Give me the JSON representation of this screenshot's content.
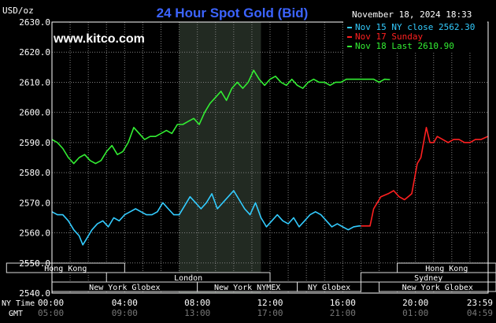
{
  "header": {
    "unit_label": "USD/oz",
    "title": "24 Hour Spot Gold (Bid)",
    "timestamp": "November 18, 2024 18:33",
    "site": "www.kitco.com"
  },
  "colors": {
    "background": "#000000",
    "grid": "#808080",
    "frame": "#ffffff",
    "title": "#3c64ff",
    "site": "#ffffff",
    "nymex_shade": "#222a22",
    "market_box": "#000000",
    "market_text": "#ffffff",
    "market_border": "#dddddd"
  },
  "legend": [
    {
      "label": "Nov 15 NY close 2562.30",
      "color": "#33ccff"
    },
    {
      "label": "Nov 17 Sunday",
      "color": "#ff2020"
    },
    {
      "label": "Nov 18 Last 2610.90",
      "color": "#33ee33"
    }
  ],
  "axis_footer": {
    "ny_label": "NY Time",
    "gmt_label": "GMT"
  },
  "markets": [
    {
      "name": "Hong Kong",
      "start": -2.5,
      "end": 4.0,
      "row": 0
    },
    {
      "name": "London",
      "start": 3.0,
      "end": 12.0,
      "row": 1
    },
    {
      "name": "New York Globex",
      "start": 0.0,
      "end": 8.0,
      "row": 2
    },
    {
      "name": "New York NYMEX",
      "start": 8.0,
      "end": 13.5,
      "row": 2
    },
    {
      "name": "NY Globex",
      "start": 13.5,
      "end": 17.0,
      "row": 2
    },
    {
      "name": "Hong Kong",
      "start": 19.0,
      "end": 24.5,
      "row": 0
    },
    {
      "name": "Sydney",
      "start": 17.0,
      "end": 24.5,
      "row": 1
    },
    {
      "name": "New York Globex",
      "start": 18.0,
      "end": 24.5,
      "row": 2
    }
  ],
  "chart_data": {
    "type": "line",
    "title": "24 Hour Spot Gold (Bid)",
    "ylabel": "USD/oz",
    "ylim": [
      2540,
      2630
    ],
    "xlim": [
      0,
      24
    ],
    "nymex_session": [
      7.0,
      11.5
    ],
    "yticks": [
      "2540.0",
      "2550.0",
      "2560.0",
      "2570.0",
      "2580.0",
      "2590.0",
      "2600.0",
      "2610.0",
      "2620.0",
      "2630.0"
    ],
    "xticks": [
      {
        "pos": 0,
        "ny": "00:00",
        "gmt": "05:00"
      },
      {
        "pos": 4,
        "ny": "04:00",
        "gmt": "09:00"
      },
      {
        "pos": 8,
        "ny": "08:00",
        "gmt": "13:00"
      },
      {
        "pos": 12,
        "ny": "12:00",
        "gmt": "17:00"
      },
      {
        "pos": 16,
        "ny": "16:00",
        "gmt": "21:00"
      },
      {
        "pos": 20,
        "ny": "20:00",
        "gmt": "01:00"
      },
      {
        "pos": 23.983,
        "ny": "23:59",
        "gmt": "04:59"
      }
    ],
    "series": [
      {
        "name": "Nov 15 NY close 2562.30",
        "color": "#33ccff",
        "x": [
          0,
          0.3,
          0.6,
          0.9,
          1.2,
          1.5,
          1.7,
          1.9,
          2.2,
          2.5,
          2.8,
          3.1,
          3.4,
          3.7,
          4.0,
          4.3,
          4.6,
          4.9,
          5.2,
          5.5,
          5.8,
          6.1,
          6.4,
          6.7,
          7.0,
          7.3,
          7.6,
          7.9,
          8.2,
          8.5,
          8.8,
          9.1,
          9.4,
          9.7,
          10.0,
          10.3,
          10.6,
          10.9,
          11.2,
          11.5,
          11.8,
          12.1,
          12.4,
          12.7,
          13.0,
          13.3,
          13.6,
          13.9,
          14.2,
          14.5,
          14.8,
          15.1,
          15.4,
          15.7,
          16.0,
          16.3,
          16.6,
          16.9,
          17.0
        ],
        "y": [
          2567,
          2566,
          2566,
          2564,
          2561,
          2559,
          2556,
          2558,
          2561,
          2563,
          2564,
          2562,
          2565,
          2564,
          2566,
          2567,
          2568,
          2567,
          2566,
          2566,
          2567,
          2570,
          2568,
          2566,
          2566,
          2569,
          2572,
          2570,
          2568,
          2570,
          2573,
          2568,
          2570,
          2572,
          2574,
          2571,
          2568,
          2566,
          2570,
          2565,
          2562,
          2564,
          2566,
          2564,
          2563,
          2565,
          2562,
          2564,
          2566,
          2567,
          2566,
          2564,
          2562,
          2563,
          2562,
          2561,
          2562,
          2562.3,
          2562.3
        ]
      },
      {
        "name": "Nov 17 Sunday",
        "color": "#ff2020",
        "x": [
          17.0,
          17.5,
          17.7,
          18.1,
          18.5,
          18.8,
          19.1,
          19.4,
          19.6,
          19.8,
          20.1,
          20.3,
          20.6,
          20.8,
          21.0,
          21.2,
          21.5,
          21.8,
          22.1,
          22.4,
          22.7,
          23.0,
          23.3,
          23.6,
          23.983
        ],
        "y": [
          2562.3,
          2562.3,
          2568,
          2572,
          2573,
          2574,
          2572,
          2571,
          2572,
          2573,
          2583,
          2585,
          2595,
          2590,
          2590,
          2592,
          2591,
          2590,
          2591,
          2591,
          2590,
          2590,
          2591,
          2591,
          2592
        ]
      },
      {
        "name": "Nov 18 Last 2610.90",
        "color": "#33ee33",
        "x": [
          0,
          0.3,
          0.6,
          0.9,
          1.2,
          1.5,
          1.8,
          2.1,
          2.4,
          2.7,
          3.0,
          3.3,
          3.6,
          3.9,
          4.2,
          4.5,
          4.8,
          5.1,
          5.4,
          5.7,
          6.0,
          6.3,
          6.6,
          6.9,
          7.2,
          7.5,
          7.8,
          8.1,
          8.4,
          8.7,
          9.0,
          9.3,
          9.6,
          9.9,
          10.2,
          10.5,
          10.8,
          11.1,
          11.4,
          11.7,
          12.0,
          12.3,
          12.6,
          12.9,
          13.2,
          13.5,
          13.8,
          14.1,
          14.4,
          14.7,
          15.0,
          15.3,
          15.6,
          15.9,
          16.2,
          16.5,
          16.8,
          17.1,
          17.4,
          17.7,
          18.0,
          18.3,
          18.6
        ],
        "y": [
          2591,
          2590,
          2588,
          2585,
          2583,
          2585,
          2586,
          2584,
          2583,
          2584,
          2587,
          2589,
          2586,
          2587,
          2590,
          2595,
          2593,
          2591,
          2592,
          2592,
          2593,
          2594,
          2593,
          2596,
          2596,
          2597,
          2598,
          2596,
          2600,
          2603,
          2605,
          2607,
          2604,
          2608,
          2610,
          2608,
          2610,
          2614,
          2611,
          2609,
          2611,
          2612,
          2610,
          2609,
          2611,
          2609,
          2608,
          2610,
          2611,
          2610,
          2610,
          2609,
          2610,
          2610,
          2611,
          2611,
          2611,
          2611,
          2611,
          2611,
          2610,
          2611,
          2610.9
        ]
      }
    ]
  }
}
